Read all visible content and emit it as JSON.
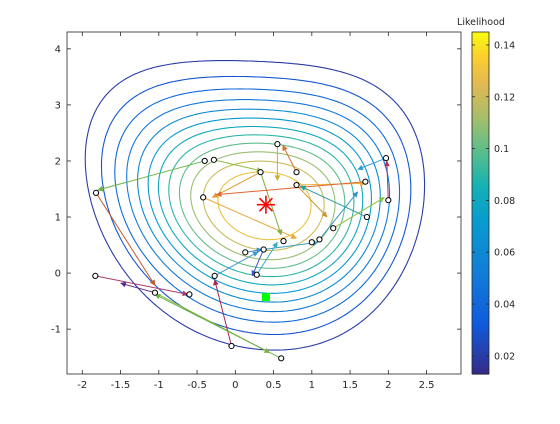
{
  "figure": {
    "colorbar_label": "Likelihood"
  },
  "chart_data": {
    "type": "contour",
    "xlim": [
      -2.2,
      2.95
    ],
    "ylim": [
      -1.8,
      4.3
    ],
    "xticks": [
      -2,
      -1.5,
      -1,
      -0.5,
      0,
      0.5,
      1,
      1.5,
      2,
      2.5
    ],
    "yticks": [
      -1,
      0,
      1,
      2,
      3,
      4
    ],
    "xtick_labels": [
      "-2",
      "-1.5",
      "-1",
      "-0.5",
      "0",
      "0.5",
      "1",
      "1.5",
      "2",
      "2.5"
    ],
    "ytick_labels": [
      "-1",
      "0",
      "1",
      "2",
      "3",
      "4"
    ],
    "grid": false,
    "colormap": "parula",
    "colorbar": {
      "label": "Likelihood",
      "range": [
        0.013,
        0.145
      ],
      "ticks": [
        0.02,
        0.04,
        0.06,
        0.08,
        0.1,
        0.12,
        0.14
      ],
      "tick_labels": [
        "0.02",
        "0.04",
        "0.06",
        "0.08",
        "0.1",
        "0.12",
        "0.14"
      ]
    },
    "contour_levels": [
      0.02,
      0.03,
      0.04,
      0.05,
      0.06,
      0.07,
      0.08,
      0.09,
      0.1,
      0.11,
      0.12,
      0.13
    ],
    "likelihood_model": {
      "peak_x": 0.4,
      "peak_y": 1.2,
      "peak_value": 0.145
    },
    "peak_marker": {
      "x": 0.4,
      "y": 1.22,
      "marker": "asterisk",
      "color": "#ff0000"
    },
    "start_marker": {
      "x": 0.4,
      "y": -0.43,
      "marker": "square",
      "color": "#00ff00"
    },
    "points": [
      {
        "x": -1.82,
        "y": 1.43
      },
      {
        "x": -1.83,
        "y": -0.05
      },
      {
        "x": -1.05,
        "y": -0.35
      },
      {
        "x": -0.6,
        "y": -0.38
      },
      {
        "x": -0.4,
        "y": 2.0
      },
      {
        "x": -0.28,
        "y": 2.02
      },
      {
        "x": -0.42,
        "y": 1.35
      },
      {
        "x": -0.27,
        "y": -0.05
      },
      {
        "x": 0.13,
        "y": 0.37
      },
      {
        "x": 0.28,
        "y": -0.03
      },
      {
        "x": 0.37,
        "y": 0.42
      },
      {
        "x": 0.33,
        "y": 1.8
      },
      {
        "x": 0.55,
        "y": 2.3
      },
      {
        "x": 0.63,
        "y": 0.57
      },
      {
        "x": 0.8,
        "y": 1.8
      },
      {
        "x": 0.8,
        "y": 1.57
      },
      {
        "x": 1.0,
        "y": 0.55
      },
      {
        "x": 1.1,
        "y": 0.6
      },
      {
        "x": 1.28,
        "y": 0.8
      },
      {
        "x": 1.7,
        "y": 1.63
      },
      {
        "x": 1.72,
        "y": 1.0
      },
      {
        "x": 1.97,
        "y": 2.05
      },
      {
        "x": 2.0,
        "y": 1.3
      },
      {
        "x": -0.05,
        "y": -1.3
      },
      {
        "x": 0.6,
        "y": -1.52
      }
    ],
    "arrows": [
      {
        "from": [
          -1.82,
          1.43
        ],
        "to": [
          -1.05,
          -0.22
        ],
        "color": "#c45a26"
      },
      {
        "from": [
          -1.83,
          -0.05
        ],
        "to": [
          -0.62,
          -0.38
        ],
        "color": "#a83b6a"
      },
      {
        "from": [
          -1.05,
          -0.35
        ],
        "to": [
          -1.5,
          -0.18
        ],
        "color": "#5b2a8a"
      },
      {
        "from": [
          -1.05,
          -0.35
        ],
        "to": [
          0.45,
          -1.42
        ],
        "color": "#8ab83a"
      },
      {
        "from": [
          -0.4,
          2.0
        ],
        "to": [
          -1.8,
          1.48
        ],
        "color": "#6db548"
      },
      {
        "from": [
          -0.28,
          2.02
        ],
        "to": [
          0.35,
          1.82
        ],
        "color": "#8dbb3e"
      },
      {
        "from": [
          -0.42,
          1.35
        ],
        "to": [
          0.8,
          0.62
        ],
        "color": "#e8a838"
      },
      {
        "from": [
          -0.27,
          -0.05
        ],
        "to": [
          0.3,
          0.38
        ],
        "color": "#4296d0"
      },
      {
        "from": [
          0.13,
          0.37
        ],
        "to": [
          0.35,
          0.42
        ],
        "color": "#3a8ecf"
      },
      {
        "from": [
          0.28,
          -0.03
        ],
        "to": [
          0.55,
          0.55
        ],
        "color": "#38b0c0"
      },
      {
        "from": [
          0.37,
          0.42
        ],
        "to": [
          0.22,
          -0.05
        ],
        "color": "#3f56c0"
      },
      {
        "from": [
          0.37,
          0.42
        ],
        "to": [
          1.08,
          0.55
        ],
        "color": "#3aa0c8"
      },
      {
        "from": [
          0.33,
          1.8
        ],
        "to": [
          0.6,
          0.68
        ],
        "color": "#7fb23c"
      },
      {
        "from": [
          0.33,
          1.8
        ],
        "to": [
          -0.3,
          1.35
        ],
        "color": "#e09a30"
      },
      {
        "from": [
          0.55,
          2.3
        ],
        "to": [
          0.55,
          1.65
        ],
        "color": "#c8b030"
      },
      {
        "from": [
          0.8,
          1.8
        ],
        "to": [
          0.62,
          2.28
        ],
        "color": "#d27030"
      },
      {
        "from": [
          0.8,
          1.57
        ],
        "to": [
          1.7,
          1.6
        ],
        "color": "#e8b040"
      },
      {
        "from": [
          0.8,
          1.57
        ],
        "to": [
          1.2,
          1.0
        ],
        "color": "#c99830"
      },
      {
        "from": [
          1.1,
          0.6
        ],
        "to": [
          1.6,
          1.45
        ],
        "color": "#3595cc"
      },
      {
        "from": [
          1.28,
          0.8
        ],
        "to": [
          1.95,
          1.35
        ],
        "color": "#8fc240"
      },
      {
        "from": [
          1.7,
          1.63
        ],
        "to": [
          -0.25,
          1.4
        ],
        "color": "#e06530"
      },
      {
        "from": [
          1.72,
          1.0
        ],
        "to": [
          0.85,
          1.55
        ],
        "color": "#2a9c9c"
      },
      {
        "from": [
          1.97,
          2.05
        ],
        "to": [
          1.6,
          1.85
        ],
        "color": "#2f9ed6"
      },
      {
        "from": [
          2.0,
          1.3
        ],
        "to": [
          1.98,
          2.0
        ],
        "color": "#b03060"
      },
      {
        "from": [
          -0.05,
          -1.3
        ],
        "to": [
          -0.27,
          -0.12
        ],
        "color": "#a3274e"
      },
      {
        "from": [
          0.6,
          -1.52
        ],
        "to": [
          -1.05,
          -0.38
        ],
        "color": "#6ab44c"
      }
    ]
  }
}
